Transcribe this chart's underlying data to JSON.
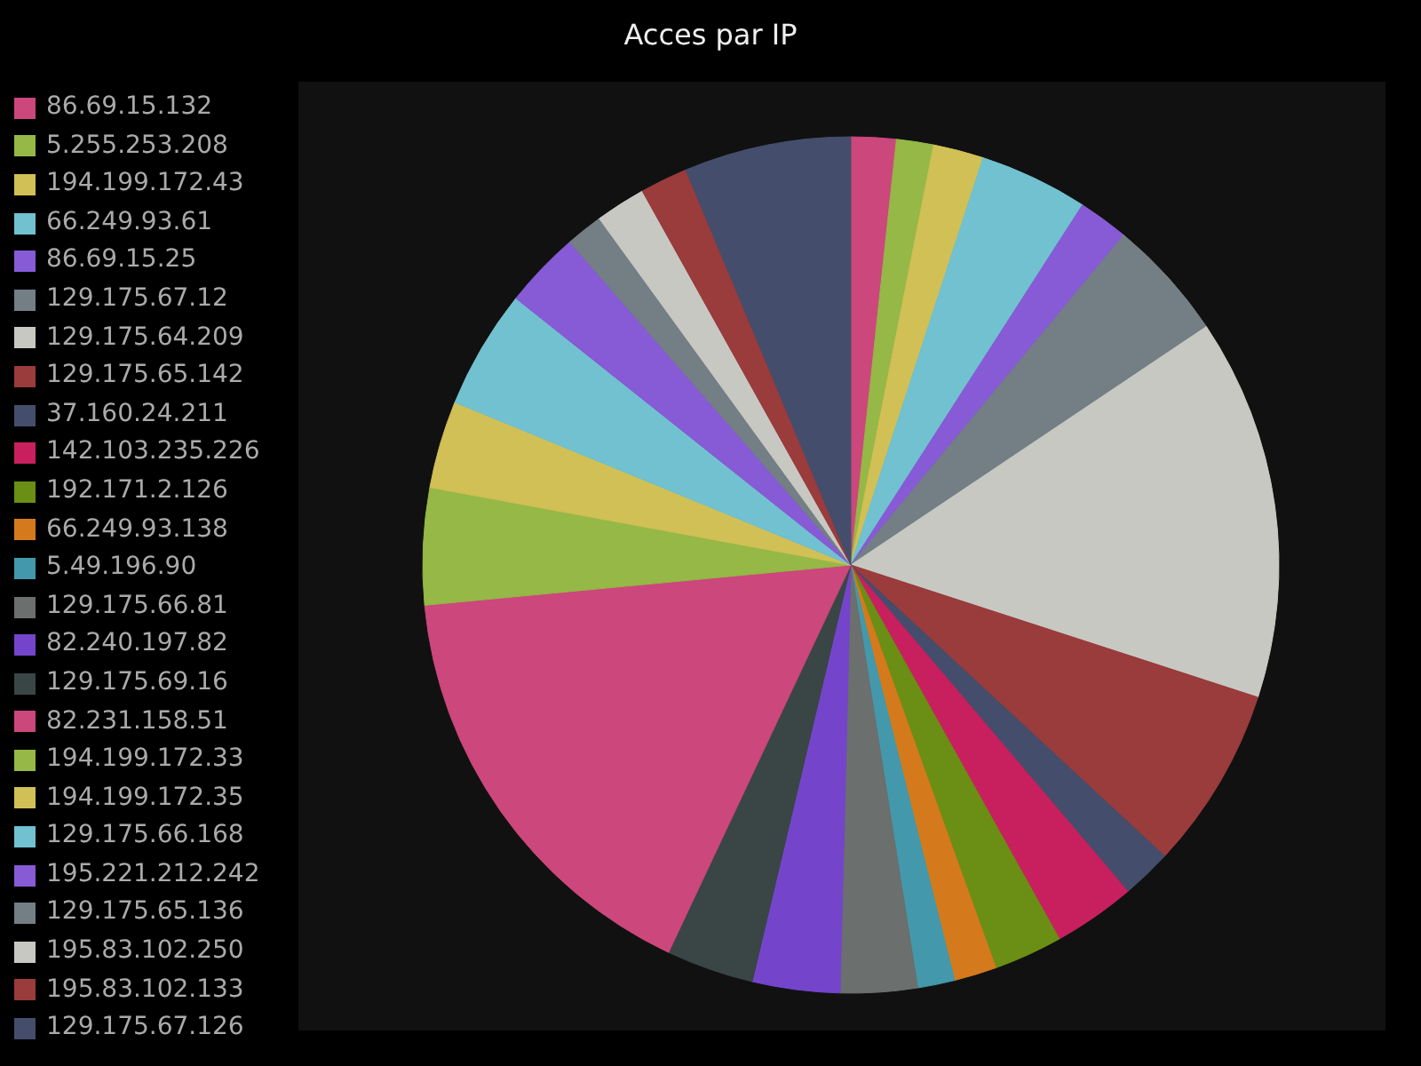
{
  "chart_data": {
    "type": "pie",
    "title": "Acces par IP",
    "legend": "left",
    "categories": [
      "86.69.15.132",
      "5.255.253.208",
      "194.199.172.43",
      "66.249.93.61",
      "86.69.15.25",
      "129.175.67.12",
      "129.175.64.209",
      "129.175.65.142",
      "37.160.24.211",
      "142.103.235.226",
      "192.171.2.126",
      "66.249.93.138",
      "5.49.196.90",
      "129.175.66.81",
      "82.240.197.82",
      "129.175.69.16",
      "82.231.158.51",
      "194.199.172.33",
      "194.199.172.35",
      "129.175.66.168",
      "195.221.212.242",
      "129.175.65.136",
      "195.83.102.250",
      "195.83.102.133",
      "129.175.67.126"
    ],
    "values": [
      1.7,
      1.4,
      1.9,
      4.1,
      1.9,
      4.6,
      14.4,
      6.9,
      1.9,
      3.1,
      2.6,
      1.6,
      1.4,
      2.9,
      3.3,
      3.3,
      16.5,
      4.4,
      3.3,
      4.5,
      2.9,
      1.4,
      1.9,
      1.8,
      6.3
    ],
    "colors": [
      "#cc477b",
      "#95b846",
      "#d1c055",
      "#71c1d0",
      "#875bd6",
      "#737f85",
      "#c8c8c3",
      "#9a3b3c",
      "#444e6c",
      "#c8205e",
      "#6a8f14",
      "#d57a1c",
      "#4399ab",
      "#6b6f6e",
      "#7445cb",
      "#3a4645",
      "#cc477b",
      "#95b846",
      "#d1c055",
      "#71c1d0",
      "#875bd6",
      "#737f85",
      "#c8c8c3",
      "#9a3b3c",
      "#444e6c"
    ]
  }
}
